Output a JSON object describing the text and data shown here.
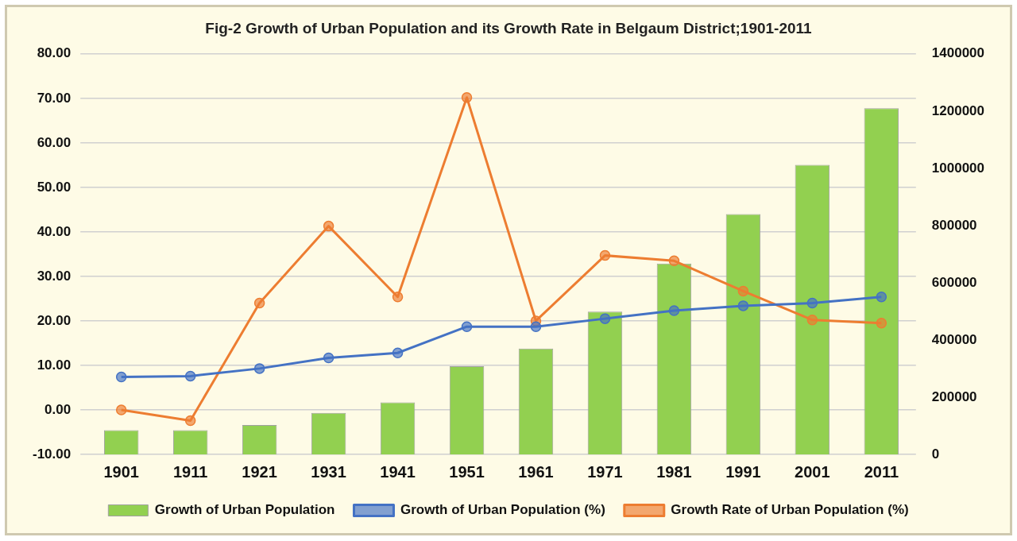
{
  "chart_data": {
    "type": "bar",
    "title": "Fig-2 Growth of Urban Population and its Growth Rate in Belgaum District;1901-2011",
    "categories": [
      "1901",
      "1911",
      "1921",
      "1931",
      "1941",
      "1951",
      "1961",
      "1971",
      "1981",
      "1991",
      "2001",
      "2011"
    ],
    "series": [
      {
        "name": "Growth of Urban Population",
        "axis": "y2",
        "color": "#92d050",
        "values": [
          85000,
          85000,
          103000,
          145000,
          182000,
          308000,
          370000,
          499000,
          667000,
          840000,
          1012000,
          1210000
        ]
      },
      {
        "name": "Growth of Urban Population (%)",
        "type": "line",
        "color": "#4472c4",
        "values": [
          7.4,
          7.6,
          9.3,
          11.7,
          12.8,
          18.7,
          18.7,
          20.5,
          22.3,
          23.4,
          24.0,
          25.4
        ]
      },
      {
        "name": "Growth Rate of Urban Population (%)",
        "type": "line",
        "color": "#ed7d31",
        "values": [
          0.0,
          -2.4,
          24.0,
          41.3,
          25.4,
          70.2,
          20.0,
          34.7,
          33.5,
          26.7,
          20.2,
          19.5
        ]
      }
    ],
    "ylim": [
      -10,
      80
    ],
    "yticks": [
      {
        "value": -10,
        "label": "-10.00"
      },
      {
        "value": 0,
        "label": "0.00"
      },
      {
        "value": 10,
        "label": "10.00"
      },
      {
        "value": 20,
        "label": "20.00"
      },
      {
        "value": 30,
        "label": "30.00"
      },
      {
        "value": 40,
        "label": "40.00"
      },
      {
        "value": 50,
        "label": "50.00"
      },
      {
        "value": 60,
        "label": "60.00"
      },
      {
        "value": 70,
        "label": "70.00"
      },
      {
        "value": 80,
        "label": "80.00"
      }
    ],
    "y2lim": [
      0,
      1400000
    ],
    "y2ticks": [
      0,
      200000,
      400000,
      600000,
      800000,
      1000000,
      1200000,
      1400000
    ],
    "grid": "y",
    "legend": "bottom",
    "marker": "circle"
  }
}
